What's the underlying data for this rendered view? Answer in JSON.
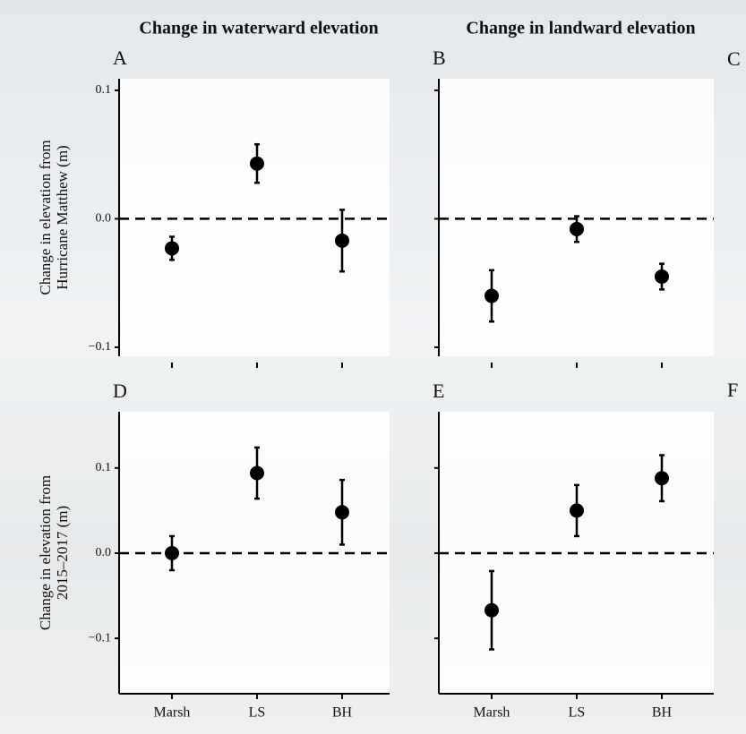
{
  "chart_data": [
    {
      "type": "errorbar",
      "title": "Change in waterward elevation",
      "panel_label": "A",
      "ylabel": [
        "Change in elevation from",
        "Hurricane Matthew (m)"
      ],
      "categories": [
        null,
        null,
        null
      ],
      "values": [
        -0.023,
        0.043,
        -0.017
      ],
      "errors": [
        0.009,
        0.015,
        0.024
      ],
      "ylim": [
        -0.107,
        0.109
      ],
      "yticks": [
        {
          "value": -0.1,
          "label": "−0.1"
        },
        {
          "value": 0,
          "label": "0.0"
        },
        {
          "value": 0.1,
          "label": "0.1"
        }
      ],
      "hline": 0,
      "xaxis_line": false,
      "color": "#000000"
    },
    {
      "type": "errorbar",
      "title": "Change in landward elevation",
      "panel_label": "B",
      "categories": [
        null,
        null,
        null
      ],
      "values": [
        -0.06,
        -0.008,
        -0.045
      ],
      "errors": [
        0.02,
        0.01,
        0.01
      ],
      "ylim": [
        -0.107,
        0.109
      ],
      "yticks": [
        -0.1,
        0,
        0.1
      ],
      "hline": 0,
      "xaxis_line": false,
      "color": "#000000"
    },
    {
      "type": "errorbar",
      "panel_label": "D",
      "ylabel": [
        "Change in elevation from",
        "2015–2017 (m)"
      ],
      "categories": [
        "Marsh",
        "LS",
        "BH"
      ],
      "values": [
        0.0,
        0.094,
        0.048
      ],
      "errors": [
        0.02,
        0.03,
        0.038
      ],
      "ylim": [
        -0.165,
        0.166
      ],
      "yticks": [
        {
          "value": -0.1,
          "label": "−0.1"
        },
        {
          "value": 0,
          "label": "0.0"
        },
        {
          "value": 0.1,
          "label": "0.1"
        }
      ],
      "hline": 0,
      "xaxis_line": true,
      "color": "#000000"
    },
    {
      "type": "errorbar",
      "panel_label": "E",
      "categories": [
        "Marsh",
        "LS",
        "BH"
      ],
      "values": [
        -0.067,
        0.05,
        0.088
      ],
      "errors": [
        0.046,
        0.03,
        0.027
      ],
      "ylim": [
        -0.165,
        0.166
      ],
      "yticks": [
        -0.1,
        0,
        0.1
      ],
      "hline": 0,
      "xaxis_line": true,
      "color": "#000000"
    }
  ],
  "cut_off_panel_labels": [
    "C",
    "F"
  ]
}
